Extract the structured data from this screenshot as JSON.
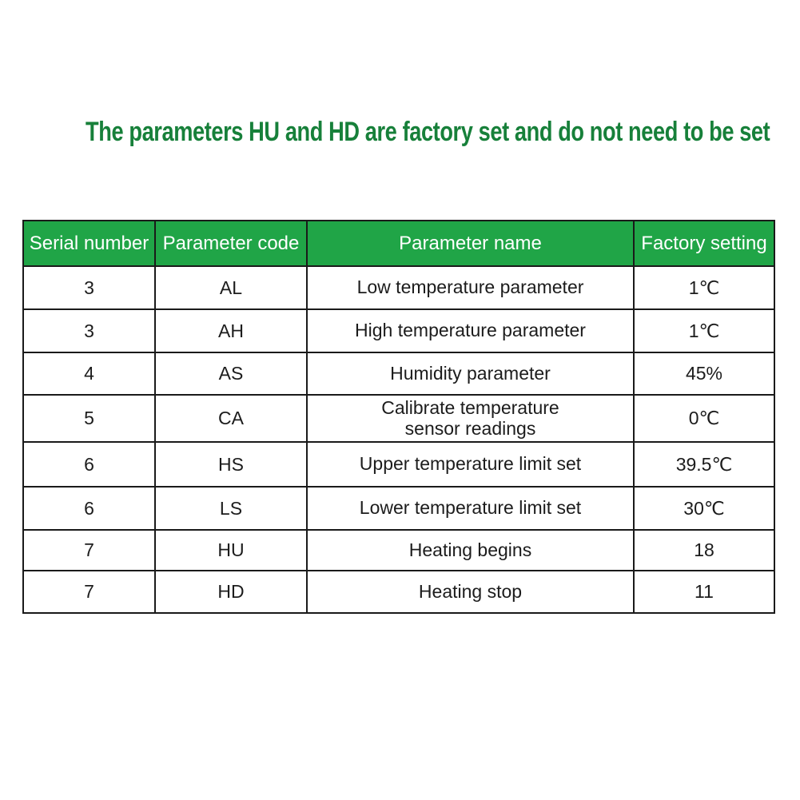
{
  "title": {
    "text": "The parameters HU and HD are factory set and do not need to be set",
    "color": "#17803a"
  },
  "table": {
    "header_bg": "#20a547",
    "header_fg": "#ffffff",
    "headers": [
      "Serial number",
      "Parameter code",
      "Parameter name",
      "Factory setting"
    ],
    "rows": [
      {
        "serial": "3",
        "code": "AL",
        "name": "Low temperature parameter",
        "setting": "1℃"
      },
      {
        "serial": "3",
        "code": "AH",
        "name": "High temperature parameter",
        "setting": "1℃"
      },
      {
        "serial": "4",
        "code": "AS",
        "name": "Humidity parameter",
        "setting": "45%"
      },
      {
        "serial": "5",
        "code": "CA",
        "name": "Calibrate temperature\nsensor readings",
        "setting": "0℃"
      },
      {
        "serial": "6",
        "code": "HS",
        "name": "Upper temperature limit set",
        "setting": "39.5℃"
      },
      {
        "serial": "6",
        "code": "LS",
        "name": "Lower temperature limit set",
        "setting": "30℃"
      },
      {
        "serial": "7",
        "code": "HU",
        "name": "Heating begins",
        "setting": "18"
      },
      {
        "serial": "7",
        "code": "HD",
        "name": "Heating stop",
        "setting": "11"
      }
    ]
  }
}
